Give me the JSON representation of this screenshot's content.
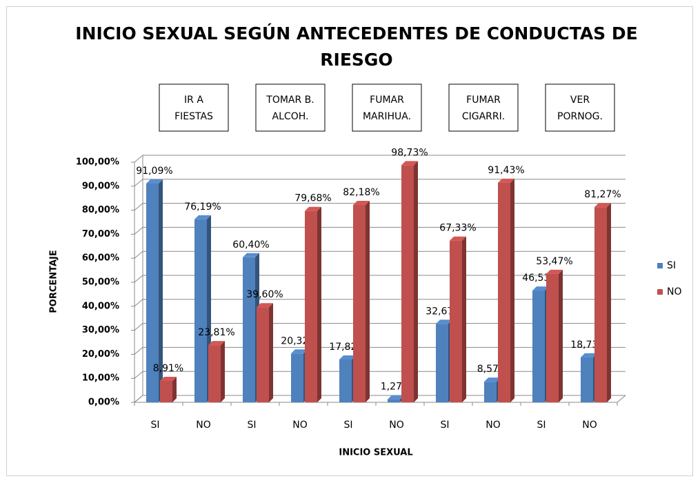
{
  "chart_data": {
    "type": "bar",
    "title": [
      "INICIO SEXUAL SEGÚN ANTECEDENTES DE CONDUCTAS DE",
      "RIESGO"
    ],
    "group_labels": [
      [
        "IR A",
        "FIESTAS"
      ],
      [
        "TOMAR B.",
        "ALCOH."
      ],
      [
        "FUMAR",
        "MARIHUA."
      ],
      [
        "FUMAR",
        "CIGARRI."
      ],
      [
        "VER",
        "PORNOG."
      ]
    ],
    "y_label": "PORCENTAJE",
    "x_label": "INICIO SEXUAL",
    "categories": [
      "SI",
      "NO",
      "SI",
      "NO",
      "SI",
      "NO",
      "SI",
      "NO",
      "SI",
      "NO"
    ],
    "series": [
      {
        "name": "SI",
        "color": "#4f81bd",
        "values": [
          91.09,
          76.19,
          60.4,
          20.32,
          17.82,
          1.27,
          32.67,
          8.57,
          46.53,
          18.73
        ],
        "value_labels": [
          "91,09%",
          "76,19%",
          "60,40%",
          "20,32%",
          "17,82%",
          "1,27%",
          "32,67%",
          "8,57%",
          "46,53%",
          "18,73%"
        ]
      },
      {
        "name": "NO",
        "color": "#c0504d",
        "values": [
          8.91,
          23.81,
          39.6,
          79.68,
          82.18,
          98.73,
          67.33,
          91.43,
          53.47,
          81.27
        ],
        "value_labels": [
          "8,91%",
          "23,81%",
          "39,60%",
          "79,68%",
          "82,18%",
          "98,73%",
          "67,33%",
          "91,43%",
          "53,47%",
          "81,27%"
        ]
      }
    ],
    "ylim": [
      0,
      100
    ],
    "yticks": [
      {
        "value": 0,
        "label": "0,00%"
      },
      {
        "value": 10,
        "label": "10,00%"
      },
      {
        "value": 20,
        "label": "20,00%"
      },
      {
        "value": 30,
        "label": "30,00%"
      },
      {
        "value": 40,
        "label": "40,00%"
      },
      {
        "value": 50,
        "label": "50,00%"
      },
      {
        "value": 60,
        "label": "60,00%"
      },
      {
        "value": 70,
        "label": "70,00%"
      },
      {
        "value": 80,
        "label": "80,00%"
      },
      {
        "value": 90,
        "label": "90,00%"
      },
      {
        "value": 100,
        "label": "100,00%"
      }
    ],
    "grid": true,
    "legend": "right"
  }
}
